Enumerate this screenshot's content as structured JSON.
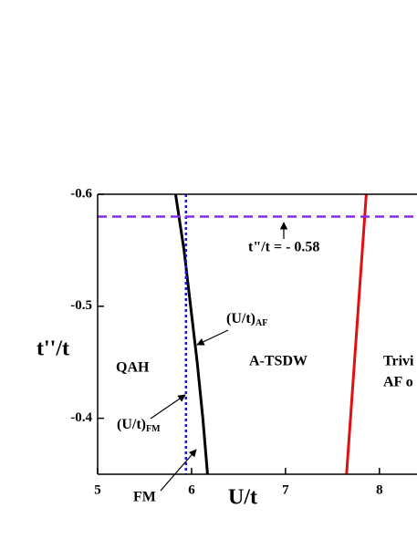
{
  "chart_data": {
    "type": "line",
    "xlabel": "U/t",
    "ylabel": "t''/t",
    "xlim": [
      5,
      8.4
    ],
    "ylim": [
      -0.35,
      -0.6
    ],
    "xticks": [
      5,
      6,
      7,
      8
    ],
    "yticks": [
      -0.6,
      -0.5,
      -0.4
    ],
    "series": [
      {
        "color": "#000000",
        "style": "solid",
        "x": [
          5.83,
          5.92,
          5.99,
          6.06,
          6.12,
          6.17
        ],
        "values": [
          -0.6,
          -0.55,
          -0.5,
          -0.45,
          -0.4,
          -0.35
        ]
      },
      {
        "color": "#1a1ad6",
        "style": "dotted",
        "x": [
          5.94,
          5.94
        ],
        "values": [
          -0.6,
          -0.35
        ]
      },
      {
        "color": "#e01010",
        "style": "solid",
        "x": [
          7.86,
          7.65
        ],
        "values": [
          -0.6,
          -0.35
        ]
      },
      {
        "color": "#8a2be2",
        "style": "dashed",
        "x": [
          5,
          8.4
        ],
        "values": [
          -0.58,
          -0.58
        ]
      }
    ],
    "annotations": [
      {
        "text": "QAH"
      },
      {
        "text": "A-TSDW"
      },
      {
        "text": "Trivi"
      },
      {
        "text": "AF o"
      },
      {
        "text": "(U/t)",
        "sub": "AF"
      },
      {
        "text": "(U/t)",
        "sub": "FM"
      },
      {
        "text": "FM"
      },
      {
        "text": "t\"/t = - 0.58"
      }
    ]
  }
}
